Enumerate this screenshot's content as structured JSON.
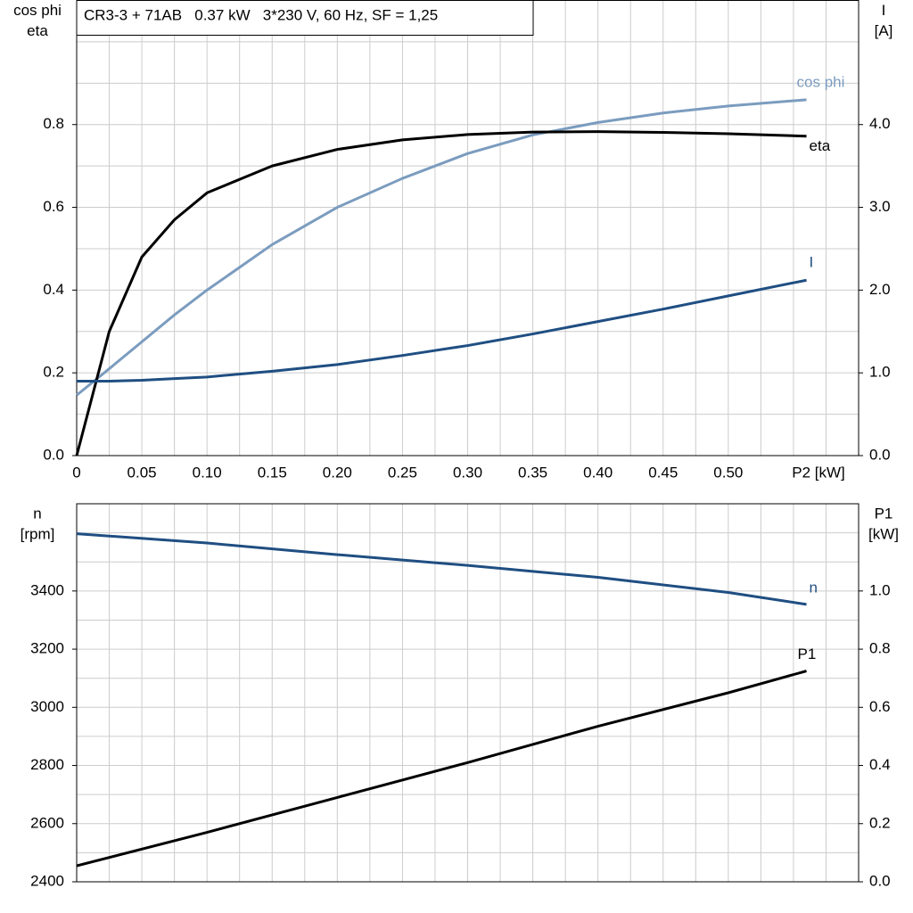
{
  "chart_data": [
    {
      "type": "line",
      "title": "CR3-3 + 71AB   0.37 kW   3*230 V, 60 Hz, SF = 1,25",
      "x_label": "P2 [kW]",
      "y_label": [
        "cos phi",
        "eta"
      ],
      "y2_label": [
        "I",
        "[A]"
      ],
      "x": [
        0,
        0.025,
        0.05,
        0.075,
        0.1,
        0.15,
        0.2,
        0.25,
        0.3,
        0.35,
        0.4,
        0.45,
        0.5,
        0.56
      ],
      "xlim": [
        0,
        0.6
      ],
      "xticks": [
        0,
        0.05,
        {
          "value": 0.1,
          "label": "0.10"
        },
        0.15,
        {
          "value": 0.2,
          "label": "0.20"
        },
        0.25,
        {
          "value": 0.3,
          "label": "0.30"
        },
        0.35,
        {
          "value": 0.4,
          "label": "0.40"
        },
        0.45,
        {
          "value": 0.5,
          "label": "0.50"
        }
      ],
      "show_xtick_labels": true,
      "ylim": [
        0,
        1.1
      ],
      "yticks": [
        {
          "value": 0,
          "label": "0.0"
        },
        0.2,
        0.4,
        0.6,
        0.8
      ],
      "y2lim": [
        0,
        5.5
      ],
      "y2ticks": [
        {
          "value": 0,
          "label": "0.0"
        },
        {
          "value": 1,
          "label": "1.0"
        },
        {
          "value": 2,
          "label": "2.0"
        },
        {
          "value": 3,
          "label": "3.0"
        },
        {
          "value": 4,
          "label": "4.0"
        }
      ],
      "grid": true,
      "series": [
        {
          "name": "cos phi",
          "color": "#7b9cbf",
          "values": [
            0.146,
            0.21,
            0.275,
            0.34,
            0.4,
            0.51,
            0.6,
            0.67,
            0.73,
            0.775,
            0.805,
            0.828,
            0.845,
            0.86
          ]
        },
        {
          "name": "eta",
          "color": "#000000",
          "values": [
            0,
            0.3,
            0.48,
            0.57,
            0.635,
            0.7,
            0.74,
            0.763,
            0.776,
            0.782,
            0.783,
            0.781,
            0.778,
            0.772
          ]
        },
        {
          "name": "I",
          "color": "#1f4e82",
          "axis": "y2",
          "values": [
            0.9,
            0.9,
            0.91,
            0.93,
            0.95,
            1.02,
            1.1,
            1.21,
            1.33,
            1.47,
            1.62,
            1.77,
            1.93,
            2.12
          ]
        }
      ]
    },
    {
      "type": "line",
      "y_label": [
        "n",
        "[rpm]"
      ],
      "y2_label": [
        "P1",
        "[kW]"
      ],
      "x": [
        0,
        0.1,
        0.2,
        0.3,
        0.4,
        0.5,
        0.56
      ],
      "xlim": [
        0,
        0.6
      ],
      "xticks": [
        0,
        0.05,
        0.1,
        0.15,
        0.2,
        0.25,
        0.3,
        0.35,
        0.4,
        0.45,
        0.5
      ],
      "show_xtick_labels": false,
      "ylim": [
        2400,
        3700
      ],
      "yticks": [
        2400,
        2600,
        2800,
        3000,
        3200,
        3400
      ],
      "y2lim": [
        0,
        1.3
      ],
      "y2ticks": [
        {
          "value": 0,
          "label": "0.0"
        },
        0.2,
        0.4,
        0.6,
        0.8,
        {
          "value": 1,
          "label": "1.0"
        }
      ],
      "grid": true,
      "series": [
        {
          "name": "n",
          "color": "#1f4e82",
          "values": [
            3597,
            3565,
            3525,
            3488,
            3447,
            3395,
            3354
          ]
        },
        {
          "name": "P1",
          "color": "#000000",
          "axis": "y2",
          "values": [
            0.055,
            0.17,
            0.29,
            0.41,
            0.535,
            0.65,
            0.725
          ]
        }
      ]
    }
  ]
}
